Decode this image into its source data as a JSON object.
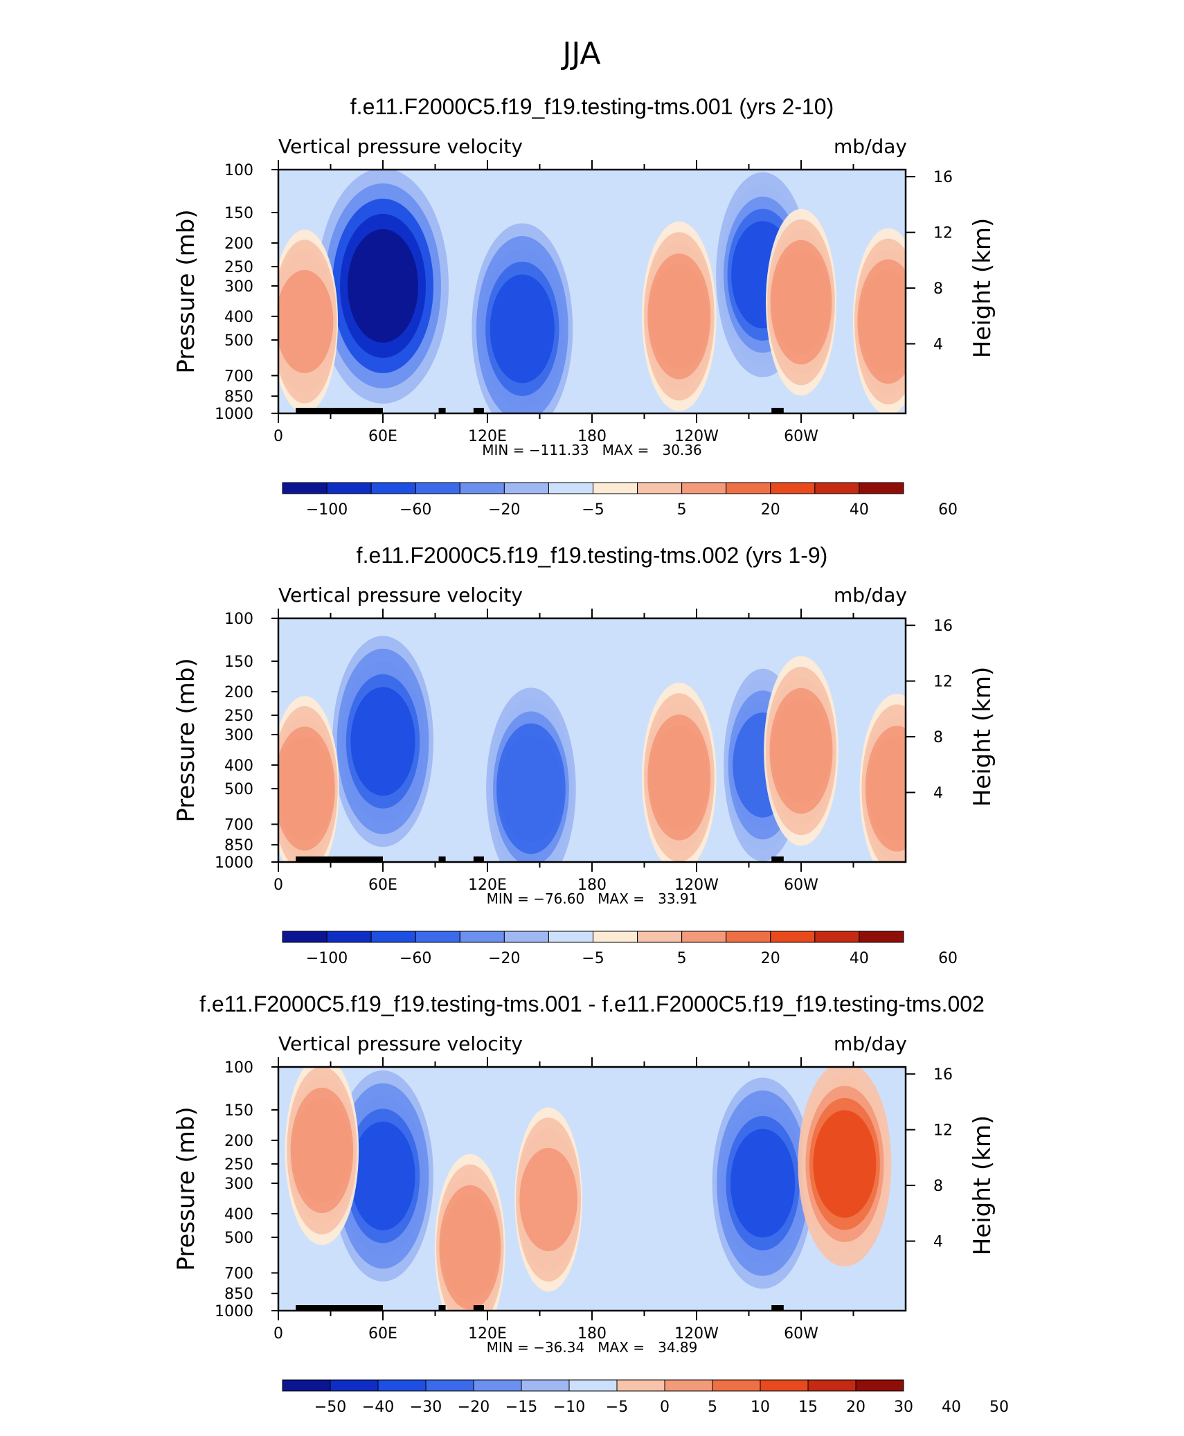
{
  "figure_title": "JJA",
  "chart_data": [
    {
      "type": "heatmap",
      "title": "f.e11.F2000C5.f19_f19.testing-tms.001 (yrs 2-10)",
      "subtitle_left": "Vertical pressure velocity",
      "subtitle_right": "mb/day",
      "ylabel": "Pressure (mb)",
      "y2label": "Height (km)",
      "xticks": [
        "0",
        "60E",
        "120E",
        "180",
        "120W",
        "60W"
      ],
      "yticks": [
        "100",
        "150",
        "200",
        "250",
        "300",
        "400",
        "500",
        "700",
        "850",
        "1000"
      ],
      "y2ticks": [
        "16",
        "12",
        "8",
        "4"
      ],
      "stats": "MIN = −111.33   MAX =   30.36",
      "min": -111.33,
      "max": 30.36,
      "colorbar_labels": [
        "−100",
        "−60",
        "−20",
        "−5",
        "5",
        "20",
        "40",
        "60"
      ],
      "features": [
        {
          "lon": 60,
          "p": 300,
          "value": -100
        },
        {
          "lon": 140,
          "p": 450,
          "value": -60
        },
        {
          "lon": 230,
          "p": 400,
          "value": 25
        },
        {
          "lon": 278,
          "p": 270,
          "value": -50
        },
        {
          "lon": 300,
          "p": 350,
          "value": 20
        },
        {
          "lon": 15,
          "p": 420,
          "value": 15
        },
        {
          "lon": 350,
          "p": 420,
          "value": 20
        }
      ]
    },
    {
      "type": "heatmap",
      "title": "f.e11.F2000C5.f19_f19.testing-tms.002 (yrs 1-9)",
      "subtitle_left": "Vertical pressure velocity",
      "subtitle_right": "mb/day",
      "ylabel": "Pressure (mb)",
      "y2label": "Height (km)",
      "xticks": [
        "0",
        "60E",
        "120E",
        "180",
        "120W",
        "60W"
      ],
      "yticks": [
        "100",
        "150",
        "200",
        "250",
        "300",
        "400",
        "500",
        "700",
        "850",
        "1000"
      ],
      "y2ticks": [
        "16",
        "12",
        "8",
        "4"
      ],
      "stats": "MIN = −76.60   MAX =   33.91",
      "min": -76.6,
      "max": 33.91,
      "colorbar_labels": [
        "−100",
        "−60",
        "−20",
        "−5",
        "5",
        "20",
        "40",
        "60"
      ],
      "features": [
        {
          "lon": 60,
          "p": 320,
          "value": -60
        },
        {
          "lon": 145,
          "p": 500,
          "value": -45
        },
        {
          "lon": 230,
          "p": 450,
          "value": 25
        },
        {
          "lon": 278,
          "p": 400,
          "value": -30
        },
        {
          "lon": 300,
          "p": 350,
          "value": 25
        },
        {
          "lon": 15,
          "p": 500,
          "value": 18
        },
        {
          "lon": 355,
          "p": 500,
          "value": 25
        }
      ]
    },
    {
      "type": "heatmap",
      "title": "f.e11.F2000C5.f19_f19.testing-tms.001 - f.e11.F2000C5.f19_f19.testing-tms.002",
      "subtitle_left": "Vertical pressure velocity",
      "subtitle_right": "mb/day",
      "ylabel": "Pressure (mb)",
      "y2label": "Height (km)",
      "xticks": [
        "0",
        "60E",
        "120E",
        "180",
        "120W",
        "60W"
      ],
      "yticks": [
        "100",
        "150",
        "200",
        "250",
        "300",
        "400",
        "500",
        "700",
        "850",
        "1000"
      ],
      "y2ticks": [
        "16",
        "12",
        "8",
        "4"
      ],
      "stats": "MIN = −36.34   MAX =   34.89",
      "min": -36.34,
      "max": 34.89,
      "colorbar_labels": [
        "−50",
        "−40",
        "−30",
        "−20",
        "−15",
        "−10",
        "−5",
        "0",
        "5",
        "10",
        "15",
        "20",
        "30",
        "40",
        "50"
      ],
      "features": [
        {
          "lon": 60,
          "p": 280,
          "value": -30
        },
        {
          "lon": 278,
          "p": 300,
          "value": -30
        },
        {
          "lon": 325,
          "p": 250,
          "value": 25
        },
        {
          "lon": 25,
          "p": 220,
          "value": 12
        },
        {
          "lon": 110,
          "p": 550,
          "value": 10
        },
        {
          "lon": 155,
          "p": 350,
          "value": 8
        }
      ]
    }
  ],
  "colors": {
    "palette": [
      "#0c1591",
      "#0f2ec6",
      "#1e4fe3",
      "#3b6aea",
      "#6b90ef",
      "#9fb8f4",
      "#cde0fb",
      "#fdebd6",
      "#f8c3ab",
      "#f39a7a",
      "#ef7044",
      "#e84a1e",
      "#c52a12",
      "#8f0e08"
    ],
    "topography": "#000000",
    "axis": "#000000"
  }
}
